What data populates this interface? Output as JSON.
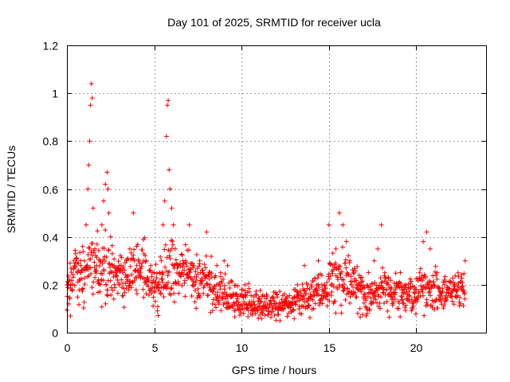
{
  "chart_data": {
    "type": "scatter",
    "title": "Day 101 of 2025, SRMTID for receiver ucla",
    "xlabel": "GPS time / hours",
    "ylabel": "SRMTID / TECUs",
    "xlim": [
      0,
      24
    ],
    "ylim": [
      0,
      1.2
    ],
    "grid": true,
    "x_ticks": [
      0,
      5,
      10,
      15,
      20
    ],
    "x_tick_labels": [
      "0",
      "5",
      "10",
      "15",
      "20"
    ],
    "y_ticks": [
      0,
      0.2,
      0.4,
      0.6,
      0.8,
      1,
      1.2
    ],
    "y_tick_labels": [
      "0",
      "0.2",
      "0.4",
      "0.6",
      "0.8",
      "1",
      "1.2"
    ],
    "marker": "+",
    "marker_color": "#ff0000",
    "series": [
      {
        "name": "SRMTID",
        "x": [
          0.0,
          0.1,
          0.2,
          0.3,
          0.4,
          0.5,
          0.6,
          0.7,
          0.8,
          0.9,
          1.0,
          1.1,
          1.2,
          1.25,
          1.3,
          1.35,
          1.4,
          1.45,
          1.5,
          1.6,
          1.7,
          1.8,
          1.9,
          2.0,
          2.1,
          2.2,
          2.3,
          2.35,
          2.4,
          2.5,
          2.6,
          2.7,
          2.8,
          2.9,
          3.0,
          3.2,
          3.4,
          3.6,
          3.8,
          4.0,
          4.2,
          4.4,
          4.6,
          4.8,
          5.0,
          5.2,
          5.4,
          5.5,
          5.6,
          5.7,
          5.75,
          5.8,
          5.85,
          5.9,
          6.0,
          6.1,
          6.2,
          6.4,
          6.6,
          6.8,
          7.0,
          7.2,
          7.4,
          7.6,
          7.8,
          8.0,
          8.2,
          8.4,
          8.6,
          8.8,
          9.0,
          9.2,
          9.4,
          9.6,
          9.8,
          10.0,
          10.2,
          10.4,
          10.6,
          10.8,
          11.0,
          11.2,
          11.4,
          11.6,
          11.8,
          12.0,
          12.2,
          12.4,
          12.6,
          12.8,
          13.0,
          13.2,
          13.4,
          13.6,
          13.8,
          14.0,
          14.2,
          14.4,
          14.6,
          14.8,
          15.0,
          15.2,
          15.4,
          15.6,
          15.8,
          16.0,
          16.2,
          16.4,
          16.6,
          16.8,
          17.0,
          17.2,
          17.4,
          17.6,
          17.8,
          18.0,
          18.2,
          18.4,
          18.6,
          18.8,
          19.0,
          19.2,
          19.4,
          19.6,
          19.8,
          20.0,
          20.2,
          20.4,
          20.6,
          20.8,
          21.0,
          21.2,
          21.4,
          21.6,
          21.8,
          22.0,
          22.2,
          22.4,
          22.6,
          22.8
        ],
        "y": [
          0.2,
          0.12,
          0.07,
          0.18,
          0.3,
          0.33,
          0.25,
          0.22,
          0.28,
          0.36,
          0.3,
          0.45,
          0.6,
          0.7,
          0.8,
          0.95,
          1.04,
          0.98,
          0.52,
          0.35,
          0.28,
          0.22,
          0.3,
          0.45,
          0.55,
          0.62,
          0.67,
          0.6,
          0.5,
          0.4,
          0.33,
          0.28,
          0.25,
          0.22,
          0.2,
          0.25,
          0.3,
          0.35,
          0.5,
          0.28,
          0.25,
          0.3,
          0.22,
          0.28,
          0.25,
          0.2,
          0.3,
          0.45,
          0.55,
          0.82,
          0.95,
          0.97,
          0.68,
          0.6,
          0.52,
          0.45,
          0.35,
          0.28,
          0.25,
          0.3,
          0.45,
          0.28,
          0.22,
          0.3,
          0.25,
          0.42,
          0.2,
          0.18,
          0.15,
          0.25,
          0.3,
          0.28,
          0.15,
          0.12,
          0.1,
          0.18,
          0.2,
          0.12,
          0.1,
          0.08,
          0.12,
          0.08,
          0.1,
          0.12,
          0.15,
          0.12,
          0.05,
          0.1,
          0.15,
          0.12,
          0.18,
          0.2,
          0.15,
          0.28,
          0.2,
          0.15,
          0.18,
          0.3,
          0.2,
          0.15,
          0.45,
          0.28,
          0.35,
          0.5,
          0.45,
          0.38,
          0.3,
          0.25,
          0.2,
          0.18,
          0.15,
          0.08,
          0.12,
          0.3,
          0.35,
          0.45,
          0.25,
          0.2,
          0.15,
          0.18,
          0.1,
          0.15,
          0.2,
          0.15,
          0.12,
          0.18,
          0.25,
          0.38,
          0.42,
          0.35,
          0.2,
          0.25,
          0.15,
          0.22,
          0.18,
          0.15,
          0.2,
          0.25,
          0.18,
          0.3
        ]
      }
    ],
    "density_shape": {
      "description": "scatter cloud envelope, median and spread per hour (data units)",
      "median_profile_x": [
        0,
        0.5,
        1,
        1.5,
        2,
        2.5,
        3,
        3.5,
        4,
        4.5,
        5,
        5.5,
        6,
        6.5,
        7,
        7.5,
        8,
        8.5,
        9,
        9.5,
        10,
        10.5,
        11,
        11.5,
        12,
        12.5,
        13,
        13.5,
        14,
        14.5,
        15,
        15.5,
        16,
        16.5,
        17,
        17.5,
        18,
        18.5,
        19,
        19.5,
        20,
        20.5,
        21,
        21.5,
        22,
        22.5,
        22.8
      ],
      "median_profile_y": [
        0.17,
        0.26,
        0.24,
        0.3,
        0.25,
        0.28,
        0.22,
        0.24,
        0.26,
        0.26,
        0.2,
        0.24,
        0.26,
        0.24,
        0.25,
        0.23,
        0.22,
        0.18,
        0.16,
        0.15,
        0.13,
        0.12,
        0.11,
        0.11,
        0.12,
        0.12,
        0.13,
        0.14,
        0.16,
        0.17,
        0.19,
        0.22,
        0.22,
        0.19,
        0.16,
        0.15,
        0.17,
        0.17,
        0.16,
        0.15,
        0.17,
        0.18,
        0.17,
        0.16,
        0.18,
        0.18,
        0.19
      ],
      "spread_y": [
        0.06,
        0.08,
        0.08,
        0.09,
        0.09,
        0.09,
        0.08,
        0.08,
        0.08,
        0.08,
        0.08,
        0.09,
        0.09,
        0.08,
        0.07,
        0.07,
        0.07,
        0.06,
        0.06,
        0.05,
        0.05,
        0.05,
        0.04,
        0.04,
        0.04,
        0.04,
        0.05,
        0.05,
        0.06,
        0.06,
        0.07,
        0.08,
        0.08,
        0.07,
        0.06,
        0.06,
        0.06,
        0.06,
        0.06,
        0.05,
        0.06,
        0.07,
        0.06,
        0.05,
        0.05,
        0.05,
        0.05
      ]
    }
  }
}
